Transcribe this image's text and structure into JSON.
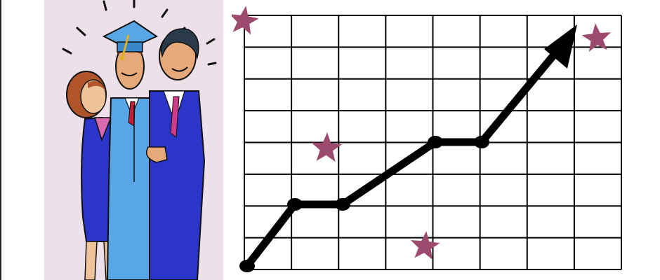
{
  "scene": {
    "panel_background": "#ede0e8",
    "grid_color": "#000000",
    "trend_color": "#000000",
    "star_color": "#9c4a6e",
    "gown_color": "#58a6e6",
    "suit_color": "#2b35c9",
    "icons": {
      "left_art": "graduation-family-clipart",
      "right_art": "rising-trend-grid",
      "stars": "star-icon"
    }
  }
}
